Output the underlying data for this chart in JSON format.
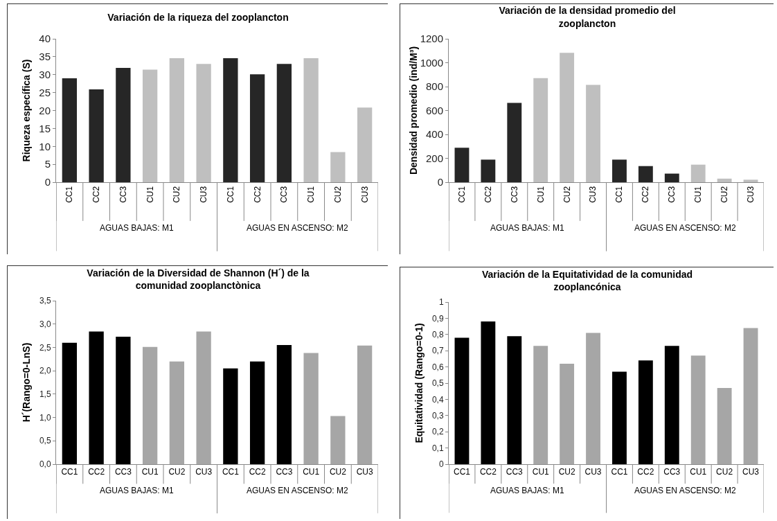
{
  "chart_data": [
    {
      "type": "bar",
      "title": "Variación de la riqueza del zooplancton",
      "ylabel": "Riqueza específica (S)",
      "categories": [
        "CC1",
        "CC2",
        "CC3",
        "CU1",
        "CU2",
        "CU3",
        "CC1",
        "CC2",
        "CC3",
        "CU1",
        "CU2",
        "CU3"
      ],
      "values": [
        29.0,
        25.9,
        31.9,
        31.4,
        34.6,
        33.0,
        34.6,
        30.1,
        33.0,
        34.6,
        8.4,
        20.8
      ],
      "colors": [
        "#262626",
        "#262626",
        "#262626",
        "#bfbfbf",
        "#bfbfbf",
        "#bfbfbf",
        "#262626",
        "#262626",
        "#262626",
        "#bfbfbf",
        "#bfbfbf",
        "#bfbfbf"
      ],
      "ylim": [
        0,
        40
      ],
      "yticks": [
        0,
        5,
        10,
        15,
        20,
        25,
        30,
        35,
        40
      ],
      "annotations": [
        "AGUAS BAJAS: M1",
        "AGUAS EN ASCENSO: M2"
      ]
    },
    {
      "type": "bar",
      "title": "Variación de la densidad promedio del zooplancton",
      "ylabel": "Densidad promedio (ind/M³)",
      "categories": [
        "CC1",
        "CC2",
        "CC3",
        "CU1",
        "CU2",
        "CU3",
        "CC1",
        "CC2",
        "CC3",
        "CU1",
        "CU2",
        "CU3"
      ],
      "values": [
        289,
        189,
        664,
        871,
        1083,
        815,
        189,
        135,
        72,
        147,
        30,
        21
      ],
      "colors": [
        "#262626",
        "#262626",
        "#262626",
        "#bfbfbf",
        "#bfbfbf",
        "#bfbfbf",
        "#262626",
        "#262626",
        "#262626",
        "#bfbfbf",
        "#bfbfbf",
        "#bfbfbf"
      ],
      "ylim": [
        0,
        1200
      ],
      "yticks": [
        0,
        200,
        400,
        600,
        800,
        1000,
        1200
      ],
      "annotations": [
        "AGUAS BAJAS: M1",
        "AGUAS EN ASCENSO: M2"
      ]
    },
    {
      "type": "bar",
      "title": "Variación de la Diversidad de Shannon (H´) de la comunidad zooplanctònica",
      "ylabel": "H´(Rango=0-LnS)",
      "categories": [
        "CC1",
        "CC2",
        "CC3",
        "CU1",
        "CU2",
        "CU3",
        "CC1",
        "CC2",
        "CC3",
        "CU1",
        "CU2",
        "CU3"
      ],
      "values": [
        2.6,
        2.84,
        2.73,
        2.51,
        2.2,
        2.84,
        2.05,
        2.2,
        2.55,
        2.38,
        1.03,
        2.54
      ],
      "colors": [
        "#000000",
        "#000000",
        "#000000",
        "#a6a6a6",
        "#a6a6a6",
        "#a6a6a6",
        "#000000",
        "#000000",
        "#000000",
        "#a6a6a6",
        "#a6a6a6",
        "#a6a6a6"
      ],
      "ylim": [
        0,
        3.5
      ],
      "yticks": [
        {
          "value": 0,
          "label": "0,0"
        },
        {
          "value": 0.5,
          "label": "0,5"
        },
        {
          "value": 1,
          "label": "1,0"
        },
        {
          "value": 1.5,
          "label": "1,5"
        },
        {
          "value": 2,
          "label": "2,0"
        },
        {
          "value": 2.5,
          "label": "2,5"
        },
        {
          "value": 3,
          "label": "3,0"
        },
        {
          "value": 3.5,
          "label": "3,5"
        }
      ],
      "annotations": [
        "AGUAS BAJAS: M1",
        "AGUAS EN ASCENSO: M2"
      ]
    },
    {
      "type": "bar",
      "title": "Variación de la Equitatividad de la comunidad zooplancónica",
      "ylabel": "Equitatividad (Rango=0-1)",
      "categories": [
        "CC1",
        "CC2",
        "CC3",
        "CU1",
        "CU2",
        "CU3",
        "CC1",
        "CC2",
        "CC3",
        "CU1",
        "CU2",
        "CU3"
      ],
      "values": [
        0.78,
        0.88,
        0.79,
        0.73,
        0.62,
        0.81,
        0.57,
        0.64,
        0.73,
        0.67,
        0.47,
        0.84
      ],
      "colors": [
        "#000000",
        "#000000",
        "#000000",
        "#a6a6a6",
        "#a6a6a6",
        "#a6a6a6",
        "#000000",
        "#000000",
        "#000000",
        "#a6a6a6",
        "#a6a6a6",
        "#a6a6a6"
      ],
      "ylim": [
        0,
        1
      ],
      "yticks": [
        0,
        {
          "value": 0.1,
          "label": "0,1"
        },
        {
          "value": 0.2,
          "label": "0,2"
        },
        {
          "value": 0.3,
          "label": "0,3"
        },
        {
          "value": 0.4,
          "label": "0,4"
        },
        {
          "value": 0.5,
          "label": "0,5"
        },
        {
          "value": 0.6,
          "label": "0,6"
        },
        {
          "value": 0.7,
          "label": "0,7"
        },
        {
          "value": 0.8,
          "label": "0,8"
        },
        {
          "value": 0.9,
          "label": "0,9"
        },
        1
      ],
      "annotations": [
        "AGUAS BAJAS: M1",
        "AGUAS EN ASCENSO: M2"
      ]
    }
  ]
}
